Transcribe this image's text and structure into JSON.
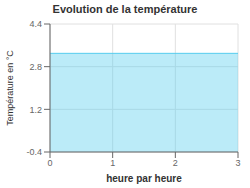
{
  "chart_data": {
    "type": "area",
    "title": "Evolution de la température",
    "xlabel": "heure par heure",
    "ylabel": "Température en °C",
    "x": [
      0,
      3
    ],
    "series": [
      {
        "values": [
          3.3,
          3.3
        ],
        "color": "#55ccee"
      }
    ],
    "xlim": [
      0,
      3
    ],
    "ylim": [
      -0.4,
      4.4
    ],
    "xticks": [
      0,
      1,
      2,
      3
    ],
    "yticks": [
      -0.4,
      1.2,
      2.8,
      4.4
    ],
    "grid": true
  }
}
